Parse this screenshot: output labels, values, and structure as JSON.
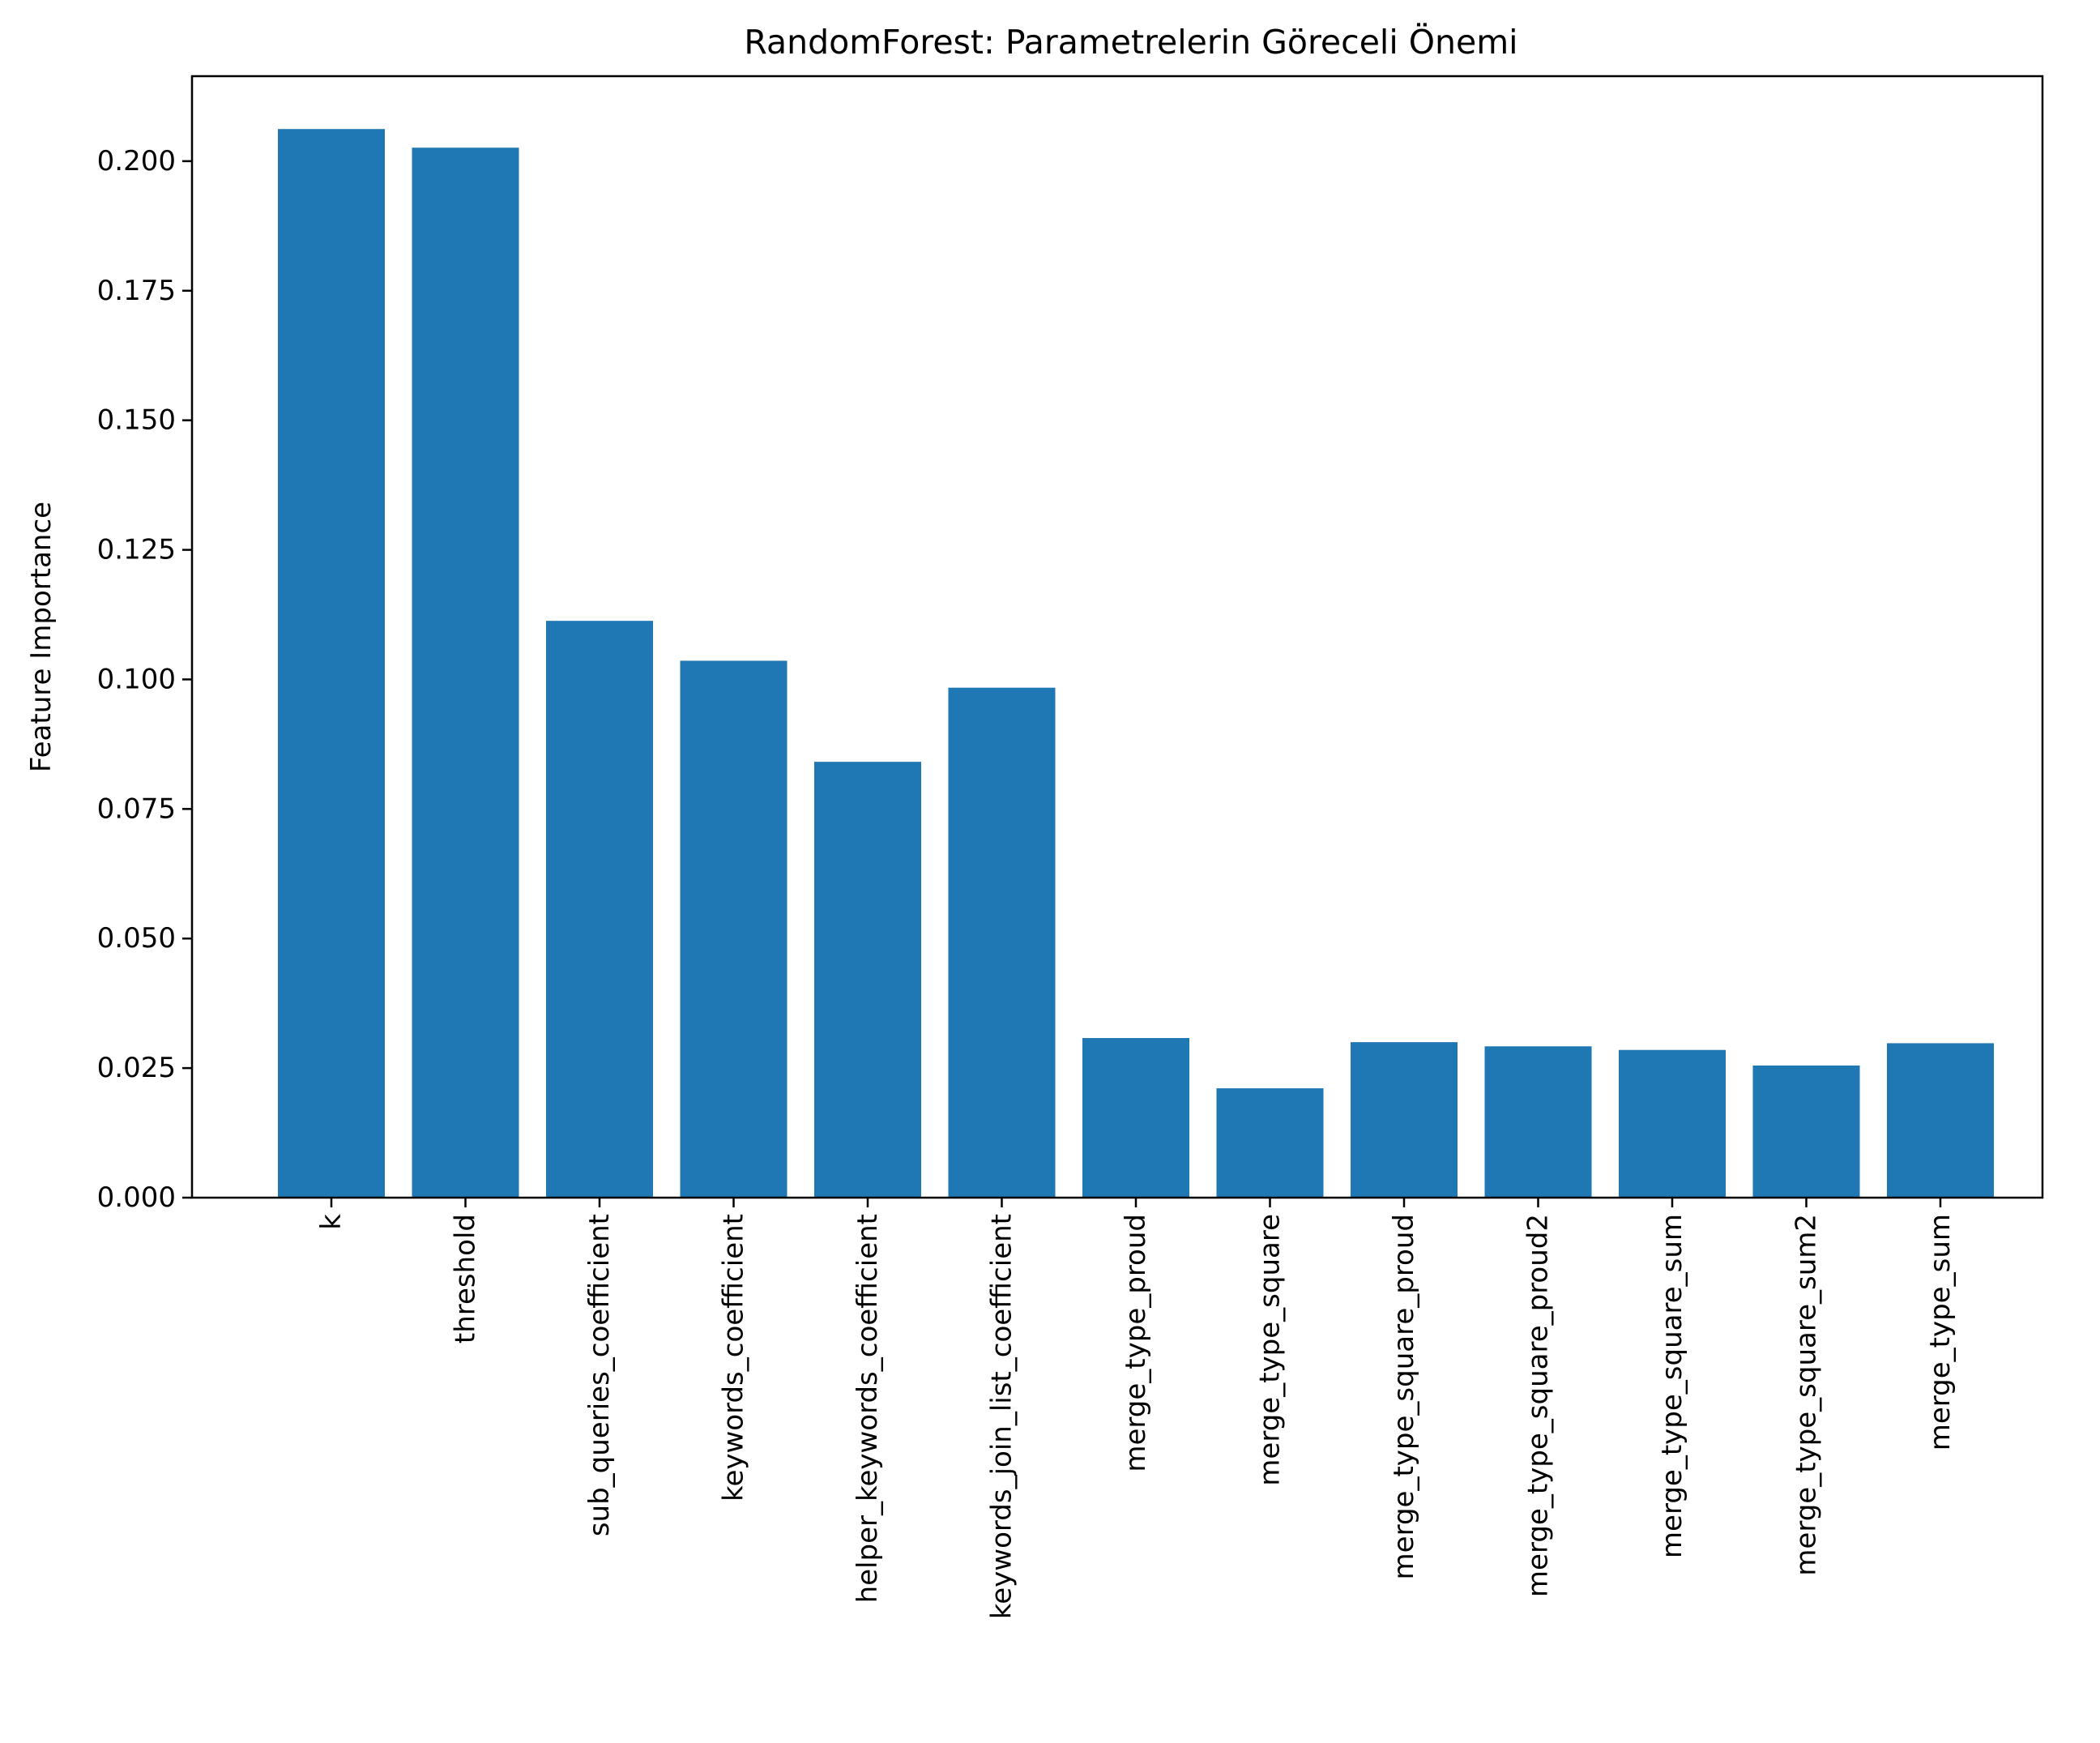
{
  "chart_data": {
    "type": "bar",
    "title": "RandomForest: Parametrelerin Göreceli Önemi",
    "xlabel": "",
    "ylabel": "Feature Importance",
    "categories": [
      "k",
      "threshold",
      "sub_queries_coefficient",
      "keywords_coefficient",
      "helper_keywords_coefficient",
      "keywords_join_list_coefficient",
      "merge_type_proud",
      "merge_type_square",
      "merge_type_square_proud",
      "merge_type_square_proud2",
      "merge_type_square_sum",
      "merge_type_square_sum2",
      "merge_type_sum"
    ],
    "values": [
      0.2062,
      0.2026,
      0.1113,
      0.1036,
      0.0841,
      0.0984,
      0.0308,
      0.0211,
      0.03,
      0.0292,
      0.0285,
      0.0255,
      0.0298
    ],
    "ylim": [
      0,
      0.2164
    ],
    "yticks": [
      "0.000",
      "0.025",
      "0.050",
      "0.075",
      "0.100",
      "0.125",
      "0.150",
      "0.175",
      "0.200"
    ],
    "grid": false,
    "bar_color": "#1f77b4"
  }
}
